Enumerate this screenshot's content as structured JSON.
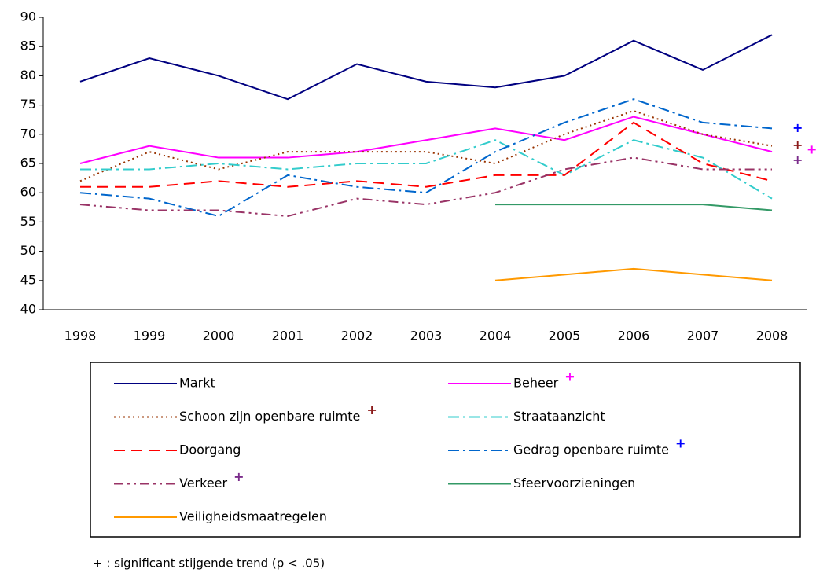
{
  "chart_data": {
    "type": "line",
    "categories": [
      "1998",
      "1999",
      "2000",
      "2001",
      "2002",
      "2003",
      "2004",
      "2005",
      "2006",
      "2007",
      "2008"
    ],
    "ylim": [
      40,
      90
    ],
    "yticks": [
      40,
      45,
      50,
      55,
      60,
      65,
      70,
      75,
      80,
      85,
      90
    ],
    "series": [
      {
        "name": "Markt",
        "color": "#000080",
        "style": "solid",
        "values": [
          79,
          83,
          80,
          76,
          82,
          79,
          78,
          80,
          86,
          81,
          87
        ]
      },
      {
        "name": "Beheer",
        "color": "#ff00ff",
        "style": "solid",
        "marker": "+",
        "marker_color": "#ff00ff",
        "values": [
          65,
          68,
          66,
          66,
          67,
          69,
          71,
          69,
          73,
          70,
          67
        ]
      },
      {
        "name": "Schoon zijn openbare ruimte",
        "color": "#993300",
        "style": "dotted",
        "marker": "+",
        "marker_color": "#8b1a1a",
        "values": [
          62,
          67,
          64,
          67,
          67,
          67,
          65,
          70,
          74,
          70,
          68
        ]
      },
      {
        "name": "Straataanzicht",
        "color": "#33cccc",
        "style": "dashdot",
        "values": [
          64,
          64,
          65,
          64,
          65,
          65,
          69,
          63,
          69,
          66,
          59
        ]
      },
      {
        "name": "Doorgang",
        "color": "#ff0000",
        "style": "dashed",
        "values": [
          61,
          61,
          62,
          61,
          62,
          61,
          63,
          63,
          72,
          65,
          62
        ]
      },
      {
        "name": "Gedrag openbare ruimte",
        "color": "#0066cc",
        "style": "dashdot",
        "marker": "+",
        "marker_color": "#0000ff",
        "values": [
          60,
          59,
          56,
          63,
          61,
          60,
          67,
          72,
          76,
          72,
          71
        ]
      },
      {
        "name": "Verkeer",
        "color": "#993366",
        "style": "dashdotdot",
        "marker": "+",
        "marker_color": "#7b2c8b",
        "values": [
          58,
          57,
          57,
          56,
          59,
          58,
          60,
          64,
          66,
          64,
          64
        ]
      },
      {
        "name": "Sfeervoorzieningen",
        "color": "#339966",
        "style": "solid",
        "values": [
          null,
          null,
          null,
          null,
          null,
          null,
          58,
          58,
          58,
          58,
          57
        ]
      },
      {
        "name": "Veiligheidsmaatregelen",
        "color": "#ff9900",
        "style": "solid",
        "values": [
          null,
          null,
          null,
          null,
          null,
          null,
          45,
          46,
          47,
          46,
          45
        ]
      }
    ],
    "footnote": "+ : significant stijgende trend (p < .05)"
  }
}
